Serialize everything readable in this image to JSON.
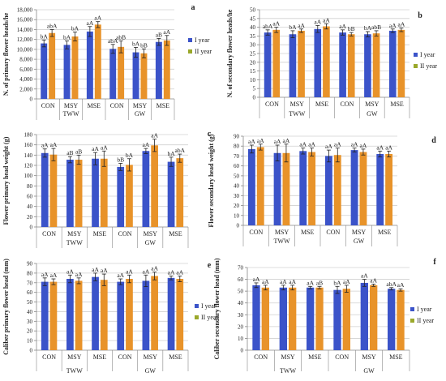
{
  "chart_data": [
    {
      "id": "a",
      "type": "bar",
      "ylabel": "N. of primary flower heads/he",
      "ylim": [
        0,
        18000
      ],
      "yticks": [
        0,
        2000,
        4000,
        6000,
        8000,
        10000,
        12000,
        14000,
        16000,
        18000
      ],
      "ytick_labels": [
        "0",
        "2,000",
        "4,000",
        "6,000",
        "8,000",
        "10,000",
        "12,000",
        "14,000",
        "16,000",
        "18,000"
      ],
      "categories": [
        "CON",
        "MSY",
        "MSE",
        "CON",
        "MSY",
        "MSE"
      ],
      "groups": [
        "TWW",
        "GW"
      ],
      "series": [
        {
          "name": "I year",
          "values": [
            11200,
            10900,
            13600,
            10100,
            9400,
            11500
          ],
          "errors": [
            700,
            800,
            1000,
            900,
            1000,
            700
          ],
          "labels": [
            "bA",
            "bA",
            "aA",
            "abA",
            "bA",
            "aB"
          ]
        },
        {
          "name": "II year",
          "values": [
            13300,
            12600,
            15000,
            10500,
            9200,
            11800
          ],
          "errors": [
            700,
            900,
            600,
            1200,
            900,
            1000
          ],
          "labels": [
            "abA",
            "bA",
            "aA",
            "abB",
            "bB",
            "aA"
          ]
        }
      ],
      "legend": "right"
    },
    {
      "id": "b",
      "type": "bar",
      "ylabel": "N. of secondary flower heads/he",
      "ylim": [
        0,
        50
      ],
      "yticks": [
        0,
        5,
        10,
        15,
        20,
        25,
        30,
        35,
        40,
        45,
        50
      ],
      "ytick_labels": [
        "0",
        "5",
        "10",
        "15",
        "20",
        "25",
        "30",
        "35",
        "40",
        "45",
        "50"
      ],
      "categories": [
        "CON",
        "MSY",
        "MSE",
        "CON",
        "MSY",
        "MSE"
      ],
      "groups": [
        "TWW",
        "GW"
      ],
      "series": [
        {
          "name": "I year",
          "values": [
            37,
            36,
            39,
            37,
            36,
            38
          ],
          "errors": [
            1.5,
            2,
            2,
            1.5,
            1.5,
            1
          ],
          "labels": [
            "abA",
            "bA",
            "aA",
            "aA",
            "bA",
            "aA"
          ]
        },
        {
          "name": "II year",
          "values": [
            38.5,
            38,
            40.5,
            36,
            36.5,
            38.5
          ],
          "errors": [
            1.5,
            1,
            1.5,
            1,
            1.5,
            1
          ],
          "labels": [
            "aA",
            "aA",
            "aA",
            "bB",
            "abB",
            "aA"
          ]
        }
      ],
      "legend": "right"
    },
    {
      "id": "c",
      "type": "bar",
      "ylabel": "Flower primary head weight (g)",
      "ylim": [
        0,
        180
      ],
      "yticks": [
        0,
        20,
        40,
        60,
        80,
        100,
        120,
        140,
        160,
        180
      ],
      "ytick_labels": [
        "0",
        "20",
        "40",
        "60",
        "80",
        "100",
        "120",
        "140",
        "160",
        "180"
      ],
      "categories": [
        "CON",
        "MSY",
        "MSE",
        "CON",
        "MSY",
        "MSE"
      ],
      "groups": [
        "TWW",
        "GW"
      ],
      "series": [
        {
          "name": "I year",
          "values": [
            144,
            131,
            133,
            117,
            148,
            127
          ],
          "errors": [
            8,
            6,
            12,
            7,
            5,
            9
          ],
          "labels": [
            "aA",
            "aB",
            "aA",
            "bB",
            "aA",
            "bA"
          ]
        },
        {
          "name": "II year",
          "values": [
            141,
            131,
            133,
            121,
            159,
            134
          ],
          "errors": [
            12,
            9,
            15,
            12,
            12,
            8
          ],
          "labels": [
            "aA",
            "aB",
            "aA",
            "bA",
            "aA",
            "abA"
          ]
        }
      ],
      "legend": "none"
    },
    {
      "id": "d",
      "type": "bar",
      "ylabel": "Flower secondary head weight (g)",
      "ylim": [
        0,
        90
      ],
      "yticks": [
        0,
        10,
        20,
        30,
        40,
        50,
        60,
        70,
        80,
        90
      ],
      "ytick_labels": [
        "0",
        "10",
        "20",
        "30",
        "40",
        "50",
        "60",
        "70",
        "80",
        "90"
      ],
      "categories": [
        "CON",
        "MSY",
        "MSE",
        "CON",
        "MSY",
        "MSE"
      ],
      "groups": [
        "TWW",
        "GW"
      ],
      "series": [
        {
          "name": "I year",
          "values": [
            77,
            73,
            75,
            70,
            76,
            72
          ],
          "errors": [
            4,
            8,
            3,
            6,
            2,
            3
          ],
          "labels": [
            "aA",
            "aA",
            "aA",
            "aA",
            "aA",
            "aA"
          ]
        },
        {
          "name": "II year",
          "values": [
            79,
            73,
            74,
            71,
            74,
            72
          ],
          "errors": [
            3,
            9,
            4,
            7,
            3,
            3
          ],
          "labels": [
            "aA",
            "aA",
            "aA",
            "aA",
            "aA",
            "aA"
          ]
        }
      ],
      "legend": "none"
    },
    {
      "id": "e",
      "type": "bar",
      "ylabel": "Caliber primary flower head (mm)",
      "ylim": [
        0,
        90
      ],
      "yticks": [
        0,
        10,
        20,
        30,
        40,
        50,
        60,
        70,
        80,
        90
      ],
      "ytick_labels": [
        "0",
        "10",
        "20",
        "30",
        "40",
        "50",
        "60",
        "70",
        "80",
        "90"
      ],
      "categories": [
        "CON",
        "MSY",
        "MSE",
        "CON",
        "MSY",
        "MSE"
      ],
      "groups": [
        "TWW",
        "GW"
      ],
      "series": [
        {
          "name": "I year",
          "values": [
            71,
            74,
            76,
            71,
            72,
            75
          ],
          "errors": [
            4,
            4,
            4,
            3,
            6,
            2
          ],
          "labels": [
            "aA",
            "aA",
            "aA",
            "aA",
            "aA",
            "aA"
          ]
        },
        {
          "name": "II year",
          "values": [
            71,
            72,
            73,
            74,
            77,
            74
          ],
          "errors": [
            3,
            3,
            6,
            4,
            4,
            3
          ],
          "labels": [
            "aA",
            "aA",
            "aA",
            "aA",
            "aA",
            "aA"
          ]
        }
      ],
      "legend": "right"
    },
    {
      "id": "f",
      "type": "bar",
      "ylabel": "Caliber secondary flower head (mm)",
      "ylim": [
        0,
        70
      ],
      "yticks": [
        0,
        10,
        20,
        30,
        40,
        50,
        60,
        70
      ],
      "ytick_labels": [
        "0",
        "10",
        "20",
        "30",
        "40",
        "50",
        "60",
        "70"
      ],
      "categories": [
        "CON",
        "MSY",
        "MSE",
        "CON",
        "MSY",
        "MSE"
      ],
      "groups": [
        "TWW",
        "GW"
      ],
      "series": [
        {
          "name": "I year",
          "values": [
            55,
            53,
            53,
            51,
            57,
            52
          ],
          "errors": [
            2,
            2,
            1,
            3,
            3,
            1
          ],
          "labels": [
            "aA",
            "aA",
            "aA",
            "bA",
            "aA",
            "abA"
          ]
        },
        {
          "name": "II year",
          "values": [
            53,
            53,
            53,
            52,
            55,
            51
          ],
          "errors": [
            2,
            2,
            1,
            3,
            1,
            1
          ],
          "labels": [
            "aA",
            "aA",
            "aB",
            "aA",
            "aA",
            "aA"
          ]
        }
      ],
      "legend": "right"
    }
  ],
  "colors": {
    "i_year": "#3b53c9",
    "ii_year": "#e8932a",
    "legend_ii_year": "#9aa82a",
    "grid": "#d0d0d0",
    "axis": "#888888",
    "text": "#222222"
  }
}
